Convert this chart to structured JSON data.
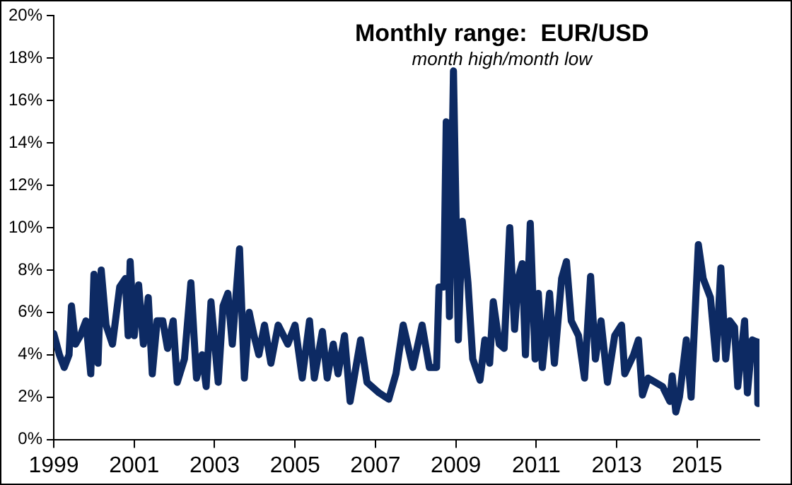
{
  "chart_data": {
    "type": "line",
    "title": "Monthly range:  EUR/USD",
    "subtitle": "month high/month low",
    "x": [
      1999.0,
      1999.14,
      1999.26,
      1999.38,
      1999.44,
      1999.54,
      1999.66,
      1999.8,
      1999.92,
      2000.0,
      2000.1,
      2000.18,
      2000.3,
      2000.46,
      2000.64,
      2000.78,
      2000.85,
      2000.9,
      2001.0,
      2001.11,
      2001.23,
      2001.35,
      2001.45,
      2001.57,
      2001.71,
      2001.83,
      2001.97,
      2002.07,
      2002.25,
      2002.41,
      2002.55,
      2002.69,
      2002.79,
      2002.91,
      2003.09,
      2003.21,
      2003.33,
      2003.44,
      2003.62,
      2003.74,
      2003.86,
      2003.98,
      2004.1,
      2004.24,
      2004.4,
      2004.58,
      2004.82,
      2005.0,
      2005.18,
      2005.36,
      2005.48,
      2005.68,
      2005.8,
      2005.95,
      2006.07,
      2006.23,
      2006.37,
      2006.63,
      2006.79,
      2007.09,
      2007.33,
      2007.51,
      2007.69,
      2007.93,
      2008.16,
      2008.34,
      2008.52,
      2008.58,
      2008.7,
      2008.76,
      2008.84,
      2008.94,
      2009.06,
      2009.16,
      2009.3,
      2009.42,
      2009.6,
      2009.72,
      2009.84,
      2009.93,
      2010.08,
      2010.2,
      2010.34,
      2010.46,
      2010.55,
      2010.65,
      2010.73,
      2010.85,
      2010.97,
      2011.05,
      2011.15,
      2011.33,
      2011.45,
      2011.63,
      2011.75,
      2011.87,
      2012.05,
      2012.2,
      2012.35,
      2012.47,
      2012.61,
      2012.77,
      2012.95,
      2013.12,
      2013.2,
      2013.42,
      2013.54,
      2013.64,
      2013.78,
      2013.96,
      2014.14,
      2014.32,
      2014.38,
      2014.47,
      2014.56,
      2014.73,
      2014.85,
      2015.03,
      2015.15,
      2015.33,
      2015.47,
      2015.59,
      2015.71,
      2015.81,
      2015.93,
      2016.01,
      2016.18,
      2016.25,
      2016.37,
      2016.49,
      2016.51
    ],
    "series": [
      {
        "color": "#0d2a63",
        "values": [
          5.0,
          4.0,
          3.4,
          4.0,
          6.3,
          4.5,
          4.9,
          5.6,
          3.1,
          7.8,
          3.6,
          8.0,
          5.4,
          4.5,
          7.2,
          7.6,
          4.9,
          8.4,
          4.9,
          7.3,
          4.5,
          6.7,
          3.1,
          5.6,
          5.6,
          4.3,
          5.6,
          2.7,
          3.8,
          7.4,
          2.9,
          4.0,
          2.5,
          6.5,
          2.7,
          6.3,
          6.9,
          4.5,
          9.0,
          2.9,
          6.0,
          4.9,
          4.0,
          5.4,
          3.6,
          5.4,
          4.5,
          5.4,
          2.9,
          5.6,
          2.9,
          5.1,
          2.9,
          4.5,
          3.1,
          4.9,
          1.8,
          4.7,
          2.7,
          2.2,
          1.9,
          3.1,
          5.4,
          3.4,
          5.4,
          3.4,
          3.4,
          7.2,
          7.2,
          15.0,
          5.8,
          17.4,
          4.7,
          10.3,
          7.4,
          3.8,
          2.8,
          4.7,
          3.6,
          6.5,
          4.5,
          4.3,
          10.0,
          5.2,
          7.6,
          8.3,
          4.0,
          10.2,
          3.8,
          6.9,
          3.4,
          6.9,
          3.6,
          7.6,
          8.4,
          5.6,
          4.9,
          2.9,
          7.7,
          3.8,
          5.6,
          2.7,
          4.9,
          5.4,
          3.1,
          4.0,
          4.7,
          2.1,
          2.9,
          2.7,
          2.5,
          1.8,
          3.0,
          1.3,
          2.0,
          4.7,
          2.0,
          9.2,
          7.6,
          6.7,
          3.8,
          8.1,
          3.8,
          5.6,
          5.3,
          2.5,
          5.6,
          2.2,
          4.7,
          4.6,
          1.7
        ]
      }
    ],
    "xlim": [
      1999,
      2016.55
    ],
    "xticks": [
      1999,
      2001,
      2003,
      2005,
      2007,
      2009,
      2011,
      2013,
      2015
    ],
    "ylim": [
      0,
      20
    ],
    "yticks": [
      {
        "value": 0,
        "label": "0%"
      },
      {
        "value": 2,
        "label": "2%"
      },
      {
        "value": 4,
        "label": "4%"
      },
      {
        "value": 6,
        "label": "6%"
      },
      {
        "value": 8,
        "label": "8%"
      },
      {
        "value": 10,
        "label": "10%"
      },
      {
        "value": 12,
        "label": "12%"
      },
      {
        "value": 14,
        "label": "14%"
      },
      {
        "value": 16,
        "label": "16%"
      },
      {
        "value": 18,
        "label": "18%"
      },
      {
        "value": 20,
        "label": "20%"
      }
    ],
    "grid": false,
    "legend": false,
    "marker": "none",
    "line_style": "solid"
  }
}
